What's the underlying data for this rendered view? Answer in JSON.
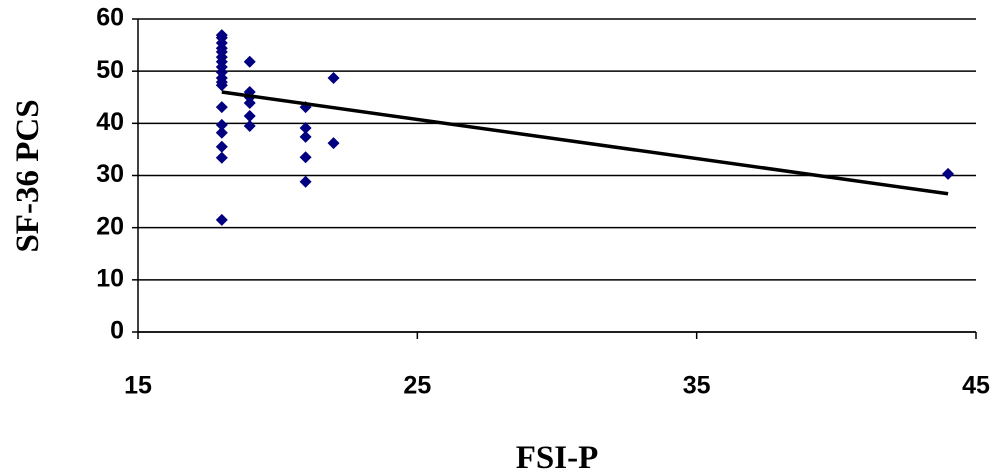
{
  "chart_data": {
    "type": "scatter",
    "x_label": "FSI-P",
    "y_label": "SF-36 PCS",
    "series": [
      {
        "color": "#000080",
        "x": [
          18,
          18,
          18,
          18,
          18,
          18,
          18,
          18,
          18,
          18,
          18,
          18,
          18,
          18,
          18,
          18,
          18,
          18,
          19,
          19,
          19,
          19,
          19,
          19,
          21,
          21,
          21,
          21,
          21,
          22,
          22,
          44
        ],
        "values": [
          56.9,
          56.4,
          55.4,
          54.4,
          53.7,
          52.7,
          51.8,
          50.8,
          49.8,
          48.7,
          47.9,
          47.3,
          43.1,
          39.7,
          38.2,
          35.5,
          33.4,
          21.5,
          51.8,
          46,
          45,
          43.9,
          41.4,
          39.5,
          43.1,
          39.1,
          37.4,
          33.5,
          28.8,
          48.7,
          36.2,
          30.3
        ]
      }
    ],
    "trendline": {
      "color": "#000000",
      "x": [
        18,
        44
      ],
      "values": [
        46,
        26.5
      ]
    },
    "xlim": [
      15,
      45
    ],
    "xticks": [
      15,
      25,
      35,
      45
    ],
    "ylim": [
      0,
      60
    ],
    "yticks": [
      0,
      10,
      20,
      30,
      40,
      50,
      60
    ],
    "grid": true
  }
}
